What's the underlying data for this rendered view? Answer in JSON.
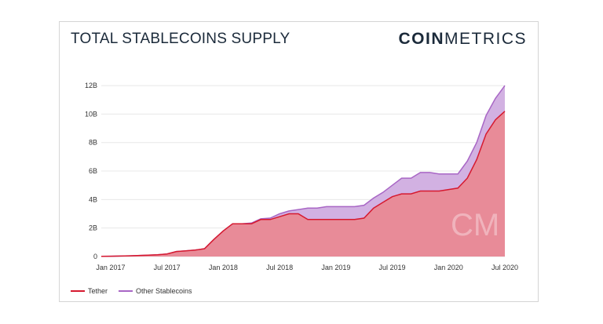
{
  "header": {
    "title": "TOTAL STABLECOINS SUPPLY",
    "brand_bold": "COIN",
    "brand_light": "METRICS"
  },
  "watermark": "CM",
  "colors": {
    "tether": "#d6192f",
    "tether_fill": "#e88b98",
    "other": "#a866c5",
    "other_fill": "#d2b1e2",
    "grid": "#e8e8e8"
  },
  "chart_data": {
    "type": "area",
    "title": "TOTAL STABLECOINS SUPPLY",
    "xlabel": "",
    "ylabel": "",
    "ylim": [
      0,
      12.5
    ],
    "y_unit": "B",
    "y_ticks": [
      {
        "value": 0,
        "label": "0"
      },
      {
        "value": 2,
        "label": "2B"
      },
      {
        "value": 4,
        "label": "4B"
      },
      {
        "value": 6,
        "label": "6B"
      },
      {
        "value": 8,
        "label": "8B"
      },
      {
        "value": 10,
        "label": "10B"
      },
      {
        "value": 12,
        "label": "12B"
      }
    ],
    "x_ticks": [
      {
        "value": "2017-01",
        "label": "Jan 2017"
      },
      {
        "value": "2017-07",
        "label": "Jul 2017"
      },
      {
        "value": "2018-01",
        "label": "Jan 2018"
      },
      {
        "value": "2018-07",
        "label": "Jul 2018"
      },
      {
        "value": "2019-01",
        "label": "Jan 2019"
      },
      {
        "value": "2019-07",
        "label": "Jul 2019"
      },
      {
        "value": "2020-01",
        "label": "Jan 2020"
      },
      {
        "value": "2020-07",
        "label": "Jul 2020"
      }
    ],
    "x_start": "2016-12",
    "x_end": "2020-07",
    "grid": true,
    "legend_position": "bottom-left",
    "x": [
      "2016-12",
      "2017-01",
      "2017-03",
      "2017-05",
      "2017-06",
      "2017-07",
      "2017-08",
      "2017-09",
      "2017-10",
      "2017-11",
      "2017-12",
      "2018-01",
      "2018-02",
      "2018-03",
      "2018-04",
      "2018-05",
      "2018-06",
      "2018-07",
      "2018-08",
      "2018-09",
      "2018-10",
      "2018-11",
      "2018-12",
      "2019-01",
      "2019-02",
      "2019-03",
      "2019-04",
      "2019-05",
      "2019-06",
      "2019-07",
      "2019-08",
      "2019-09",
      "2019-10",
      "2019-11",
      "2019-12",
      "2020-01",
      "2020-02",
      "2020-03",
      "2020-04",
      "2020-05",
      "2020-06",
      "2020-07"
    ],
    "series": [
      {
        "name": "Tether",
        "values": [
          0.01,
          0.02,
          0.05,
          0.1,
          0.12,
          0.18,
          0.35,
          0.4,
          0.45,
          0.55,
          1.2,
          1.8,
          2.3,
          2.3,
          2.3,
          2.6,
          2.6,
          2.8,
          3.0,
          3.0,
          2.6,
          2.6,
          2.6,
          2.6,
          2.6,
          2.6,
          2.7,
          3.4,
          3.8,
          4.2,
          4.4,
          4.4,
          4.6,
          4.6,
          4.6,
          4.7,
          4.8,
          5.5,
          6.8,
          8.6,
          9.6,
          10.2
        ]
      },
      {
        "name": "Other Stablecoins",
        "values": [
          0.0,
          0.0,
          0.0,
          0.0,
          0.0,
          0.0,
          0.0,
          0.0,
          0.0,
          0.0,
          0.0,
          0.0,
          0.0,
          0.0,
          0.05,
          0.05,
          0.1,
          0.2,
          0.2,
          0.3,
          0.8,
          0.8,
          0.9,
          0.9,
          0.9,
          0.9,
          0.9,
          0.7,
          0.7,
          0.8,
          1.1,
          1.1,
          1.3,
          1.3,
          1.2,
          1.1,
          1.0,
          1.2,
          1.2,
          1.3,
          1.5,
          1.8
        ]
      }
    ]
  },
  "legend": [
    {
      "label": "Tether",
      "color": "#d6192f"
    },
    {
      "label": "Other Stablecoins",
      "color": "#a866c5"
    }
  ]
}
